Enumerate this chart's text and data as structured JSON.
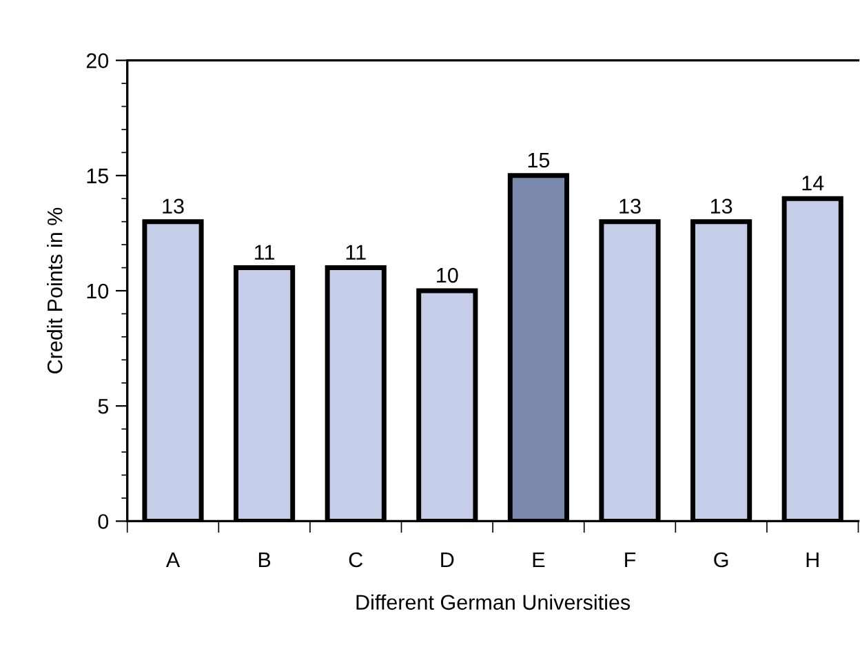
{
  "chart_data": {
    "type": "bar",
    "xlabel": "Different German Universities",
    "ylabel": "Credit Points in %",
    "categories": [
      "A",
      "B",
      "C",
      "D",
      "E",
      "F",
      "G",
      "H"
    ],
    "values": [
      13,
      11,
      11,
      10,
      15,
      13,
      13,
      14
    ],
    "colors": [
      "#c5cde8",
      "#c5cde8",
      "#c5cde8",
      "#c5cde8",
      "#7b8aac",
      "#c5cde8",
      "#c5cde8",
      "#c5cde8"
    ],
    "ylim": [
      0,
      20
    ],
    "yticks": [
      0,
      5,
      10,
      15,
      20
    ],
    "grid": false,
    "data_labels": true,
    "legend": false
  }
}
